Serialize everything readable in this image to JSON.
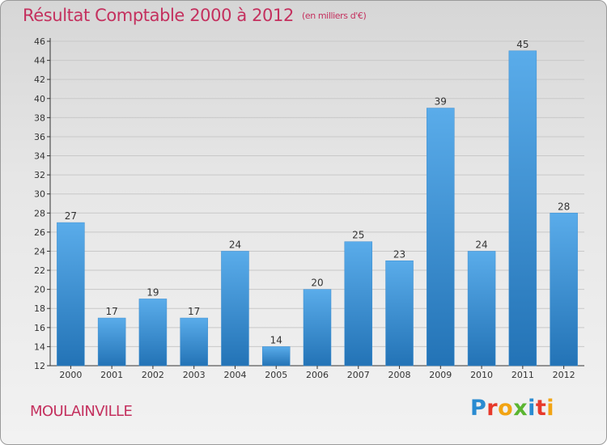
{
  "title": "Résultat Comptable 2000 à 2012",
  "subtitle": "(en milliers d'€)",
  "commune": "MOULAINVILLE",
  "logo": {
    "letters": [
      "P",
      "r",
      "o",
      "x",
      "i",
      "t",
      "i"
    ]
  },
  "colors": {
    "title": "#c4305e",
    "bar_top": "#5aacea",
    "bar_bottom": "#2373b6",
    "axis": "#333333",
    "gridline": "#c8c8c8"
  },
  "chart_data": {
    "type": "bar",
    "categories": [
      "2000",
      "2001",
      "2002",
      "2003",
      "2004",
      "2005",
      "2006",
      "2007",
      "2008",
      "2009",
      "2010",
      "2011",
      "2012"
    ],
    "values": [
      27,
      17,
      19,
      17,
      24,
      14,
      20,
      25,
      23,
      39,
      24,
      45,
      28
    ],
    "ylim": [
      12,
      46
    ],
    "yticks": [
      12,
      14,
      16,
      18,
      20,
      22,
      24,
      26,
      28,
      30,
      32,
      34,
      36,
      38,
      40,
      42,
      44,
      46
    ],
    "grid": true,
    "xlabel": "",
    "ylabel": ""
  }
}
